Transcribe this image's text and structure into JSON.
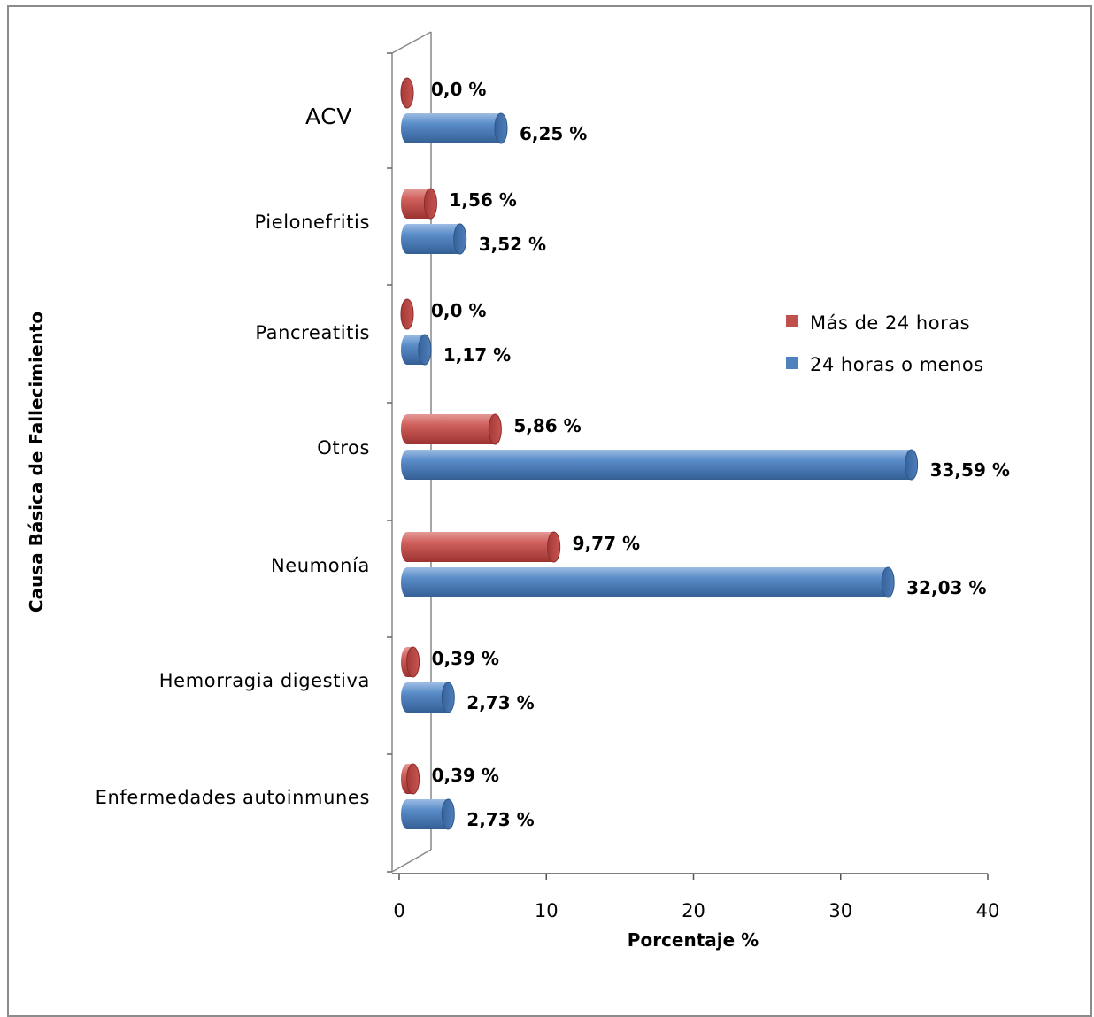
{
  "chart_data": {
    "type": "bar",
    "orientation": "horizontal",
    "style": "3d-cylinder",
    "categories": [
      "ACV",
      "Pielonefritis",
      "Pancreatitis",
      "Otros",
      "Neumonía",
      "Hemorragia digestiva",
      "Enfermedades autoinmunes"
    ],
    "series": [
      {
        "name": "Más de 24 horas",
        "color": "#c0504d",
        "values": [
          0.0,
          1.56,
          0.0,
          5.86,
          9.77,
          0.39,
          0.39
        ],
        "labels": [
          "0,0 %",
          "1,56 %",
          "0,0 %",
          "5,86 %",
          "9,77 %",
          "0,39 %",
          "0,39 %"
        ]
      },
      {
        "name": "24 horas o menos",
        "color": "#4f81bd",
        "values": [
          6.25,
          3.52,
          1.17,
          33.59,
          32.03,
          2.73,
          2.73
        ],
        "labels": [
          "6,25 %",
          "3,52 %",
          "1,17 %",
          "33,59 %",
          "32,03 %",
          "2,73 %",
          "2,73 %"
        ]
      }
    ],
    "xlabel": "Porcentaje %",
    "ylabel": "Causa Básica de Fallecimiento",
    "xlim": [
      0,
      40
    ],
    "xticks": [
      "0",
      "10",
      "20",
      "30",
      "40"
    ],
    "grid": false,
    "legend_position": "right"
  }
}
